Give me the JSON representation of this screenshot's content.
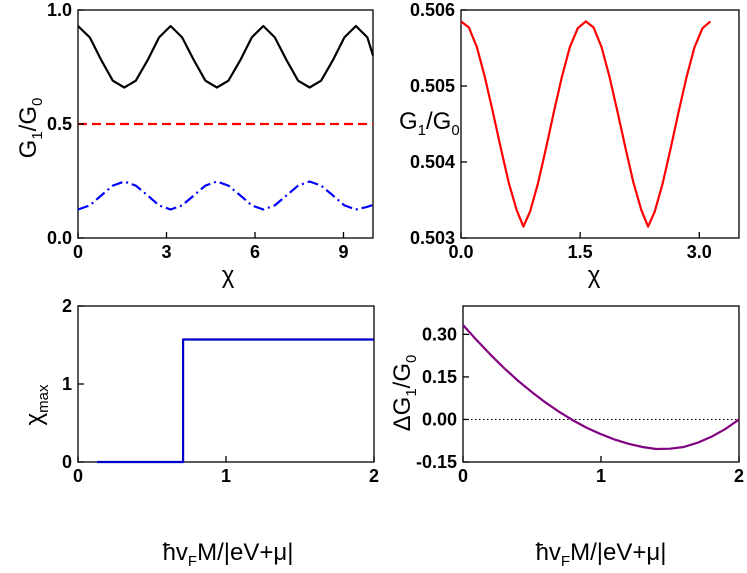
{
  "chart_data": [
    {
      "type": "line",
      "panel": "top-left",
      "xlabel": "χ",
      "ylabel": "G_1/G_0",
      "ylabel_parts": {
        "main": "G",
        "sub1": "1",
        "mid": "/G",
        "sub2": "0"
      },
      "xlim": [
        0,
        10
      ],
      "ylim": [
        0,
        1.0
      ],
      "xticks": [
        0,
        3,
        6,
        9
      ],
      "xtick_labels": [
        "0",
        "3",
        "6",
        "9"
      ],
      "yticks": [
        0.0,
        0.5,
        1.0
      ],
      "ytick_labels": [
        "0.0",
        "0.5",
        "1.0"
      ],
      "series": [
        {
          "style": "solid",
          "color": "#000000",
          "x": [
            0,
            0.4,
            0.79,
            1.18,
            1.57,
            1.96,
            2.36,
            2.75,
            3.14,
            3.53,
            3.93,
            4.32,
            4.71,
            5.1,
            5.5,
            5.89,
            6.28,
            6.67,
            7.07,
            7.46,
            7.85,
            8.24,
            8.64,
            9.03,
            9.42,
            9.81,
            10
          ],
          "y": [
            0.93,
            0.88,
            0.78,
            0.69,
            0.66,
            0.69,
            0.78,
            0.88,
            0.93,
            0.88,
            0.78,
            0.69,
            0.66,
            0.69,
            0.78,
            0.88,
            0.93,
            0.88,
            0.78,
            0.69,
            0.66,
            0.69,
            0.78,
            0.88,
            0.93,
            0.88,
            0.8
          ]
        },
        {
          "style": "dashed",
          "color": "#ff0000",
          "x": [
            0,
            10
          ],
          "y": [
            0.5,
            0.5
          ]
        },
        {
          "style": "dashdot",
          "color": "#0000ff",
          "x": [
            0,
            0.4,
            0.79,
            1.18,
            1.57,
            1.96,
            2.36,
            2.75,
            3.14,
            3.53,
            3.93,
            4.32,
            4.71,
            5.1,
            5.5,
            5.89,
            6.28,
            6.67,
            7.07,
            7.46,
            7.85,
            8.24,
            8.64,
            9.03,
            9.42,
            9.81,
            10
          ],
          "y": [
            0.125,
            0.143,
            0.187,
            0.23,
            0.248,
            0.23,
            0.187,
            0.143,
            0.125,
            0.143,
            0.187,
            0.23,
            0.248,
            0.23,
            0.187,
            0.143,
            0.125,
            0.143,
            0.187,
            0.23,
            0.248,
            0.23,
            0.187,
            0.143,
            0.125,
            0.137,
            0.145
          ]
        }
      ]
    },
    {
      "type": "line",
      "panel": "top-right",
      "xlabel": "χ",
      "ylabel": "G_1/G_0",
      "ylabel_parts": {
        "main": "G",
        "sub1": "1",
        "mid": "/G",
        "sub2": "0"
      },
      "xlim": [
        0,
        3.5
      ],
      "ylim": [
        0.503,
        0.506
      ],
      "xticks": [
        0.0,
        1.5,
        3.0
      ],
      "xtick_labels": [
        "0.0",
        "1.5",
        "3.0"
      ],
      "yticks": [
        0.503,
        0.504,
        0.505,
        0.506
      ],
      "ytick_labels": [
        "0.503",
        "0.504",
        "0.505",
        "0.506"
      ],
      "series": [
        {
          "style": "solid",
          "color": "#ff0000",
          "x": [
            0,
            0.1,
            0.2,
            0.3,
            0.4,
            0.5,
            0.6,
            0.7,
            0.785,
            0.87,
            0.97,
            1.07,
            1.17,
            1.27,
            1.37,
            1.47,
            1.571,
            1.67,
            1.77,
            1.87,
            1.97,
            2.07,
            2.17,
            2.27,
            2.356,
            2.44,
            2.54,
            2.64,
            2.74,
            2.84,
            2.94,
            3.04,
            3.14
          ],
          "y": [
            0.50585,
            0.50577,
            0.50551,
            0.50512,
            0.50466,
            0.50419,
            0.50373,
            0.50337,
            0.50315,
            0.50335,
            0.50372,
            0.50418,
            0.50466,
            0.50512,
            0.50551,
            0.50576,
            0.50585,
            0.50577,
            0.50551,
            0.50512,
            0.50466,
            0.50419,
            0.50373,
            0.50337,
            0.50315,
            0.50335,
            0.50372,
            0.50418,
            0.50466,
            0.50512,
            0.50551,
            0.50576,
            0.50585
          ]
        }
      ]
    },
    {
      "type": "line",
      "panel": "bottom-left",
      "xlabel": "ħv_FM/|eV+μ|",
      "xlabel_parts": {
        "a": "ħv",
        "sub": "F",
        "b": "M/|eV+μ|"
      },
      "ylabel": "χ_max",
      "ylabel_parts": {
        "main": "χ",
        "sub": "max"
      },
      "xlim": [
        0,
        2
      ],
      "ylim": [
        0,
        2
      ],
      "xticks": [
        0,
        1,
        2
      ],
      "xtick_labels": [
        "0",
        "1",
        "2"
      ],
      "yticks": [
        0,
        1,
        2
      ],
      "ytick_labels": [
        "0",
        "1",
        "2"
      ],
      "series": [
        {
          "style": "solid",
          "color": "#0000cc",
          "x": [
            0.13,
            0.71,
            0.71,
            2.0
          ],
          "y": [
            0,
            0,
            1.571,
            1.571
          ]
        }
      ]
    },
    {
      "type": "line",
      "panel": "bottom-right",
      "xlabel": "ħv_FM/|eV+μ|",
      "xlabel_parts": {
        "a": "ħv",
        "sub": "F",
        "b": "M/|eV+μ|"
      },
      "ylabel": "ΔG_1/G_0",
      "ylabel_parts": {
        "main": "ΔG",
        "sub1": "1",
        "mid": "/G",
        "sub2": "0"
      },
      "xlim": [
        0,
        2
      ],
      "ylim": [
        -0.15,
        0.4
      ],
      "xticks": [
        0,
        1,
        2
      ],
      "xtick_labels": [
        "0",
        "1",
        "2"
      ],
      "yticks": [
        -0.15,
        0.0,
        0.15,
        0.3
      ],
      "ytick_labels": [
        "-0.15",
        "0.00",
        "0.15",
        "0.30"
      ],
      "reference_line": {
        "y": 0,
        "style": "dotted"
      },
      "series": [
        {
          "style": "solid",
          "color": "#800080",
          "x": [
            0,
            0.1,
            0.2,
            0.3,
            0.4,
            0.5,
            0.6,
            0.7,
            0.8,
            0.9,
            1.0,
            1.1,
            1.2,
            1.3,
            1.4,
            1.5,
            1.6,
            1.7,
            1.8,
            1.9,
            2.0
          ],
          "y": [
            0.333,
            0.279,
            0.228,
            0.18,
            0.136,
            0.096,
            0.059,
            0.026,
            -0.004,
            -0.03,
            -0.052,
            -0.071,
            -0.086,
            -0.097,
            -0.104,
            -0.103,
            -0.097,
            -0.082,
            -0.061,
            -0.034,
            0.0
          ]
        }
      ]
    }
  ]
}
